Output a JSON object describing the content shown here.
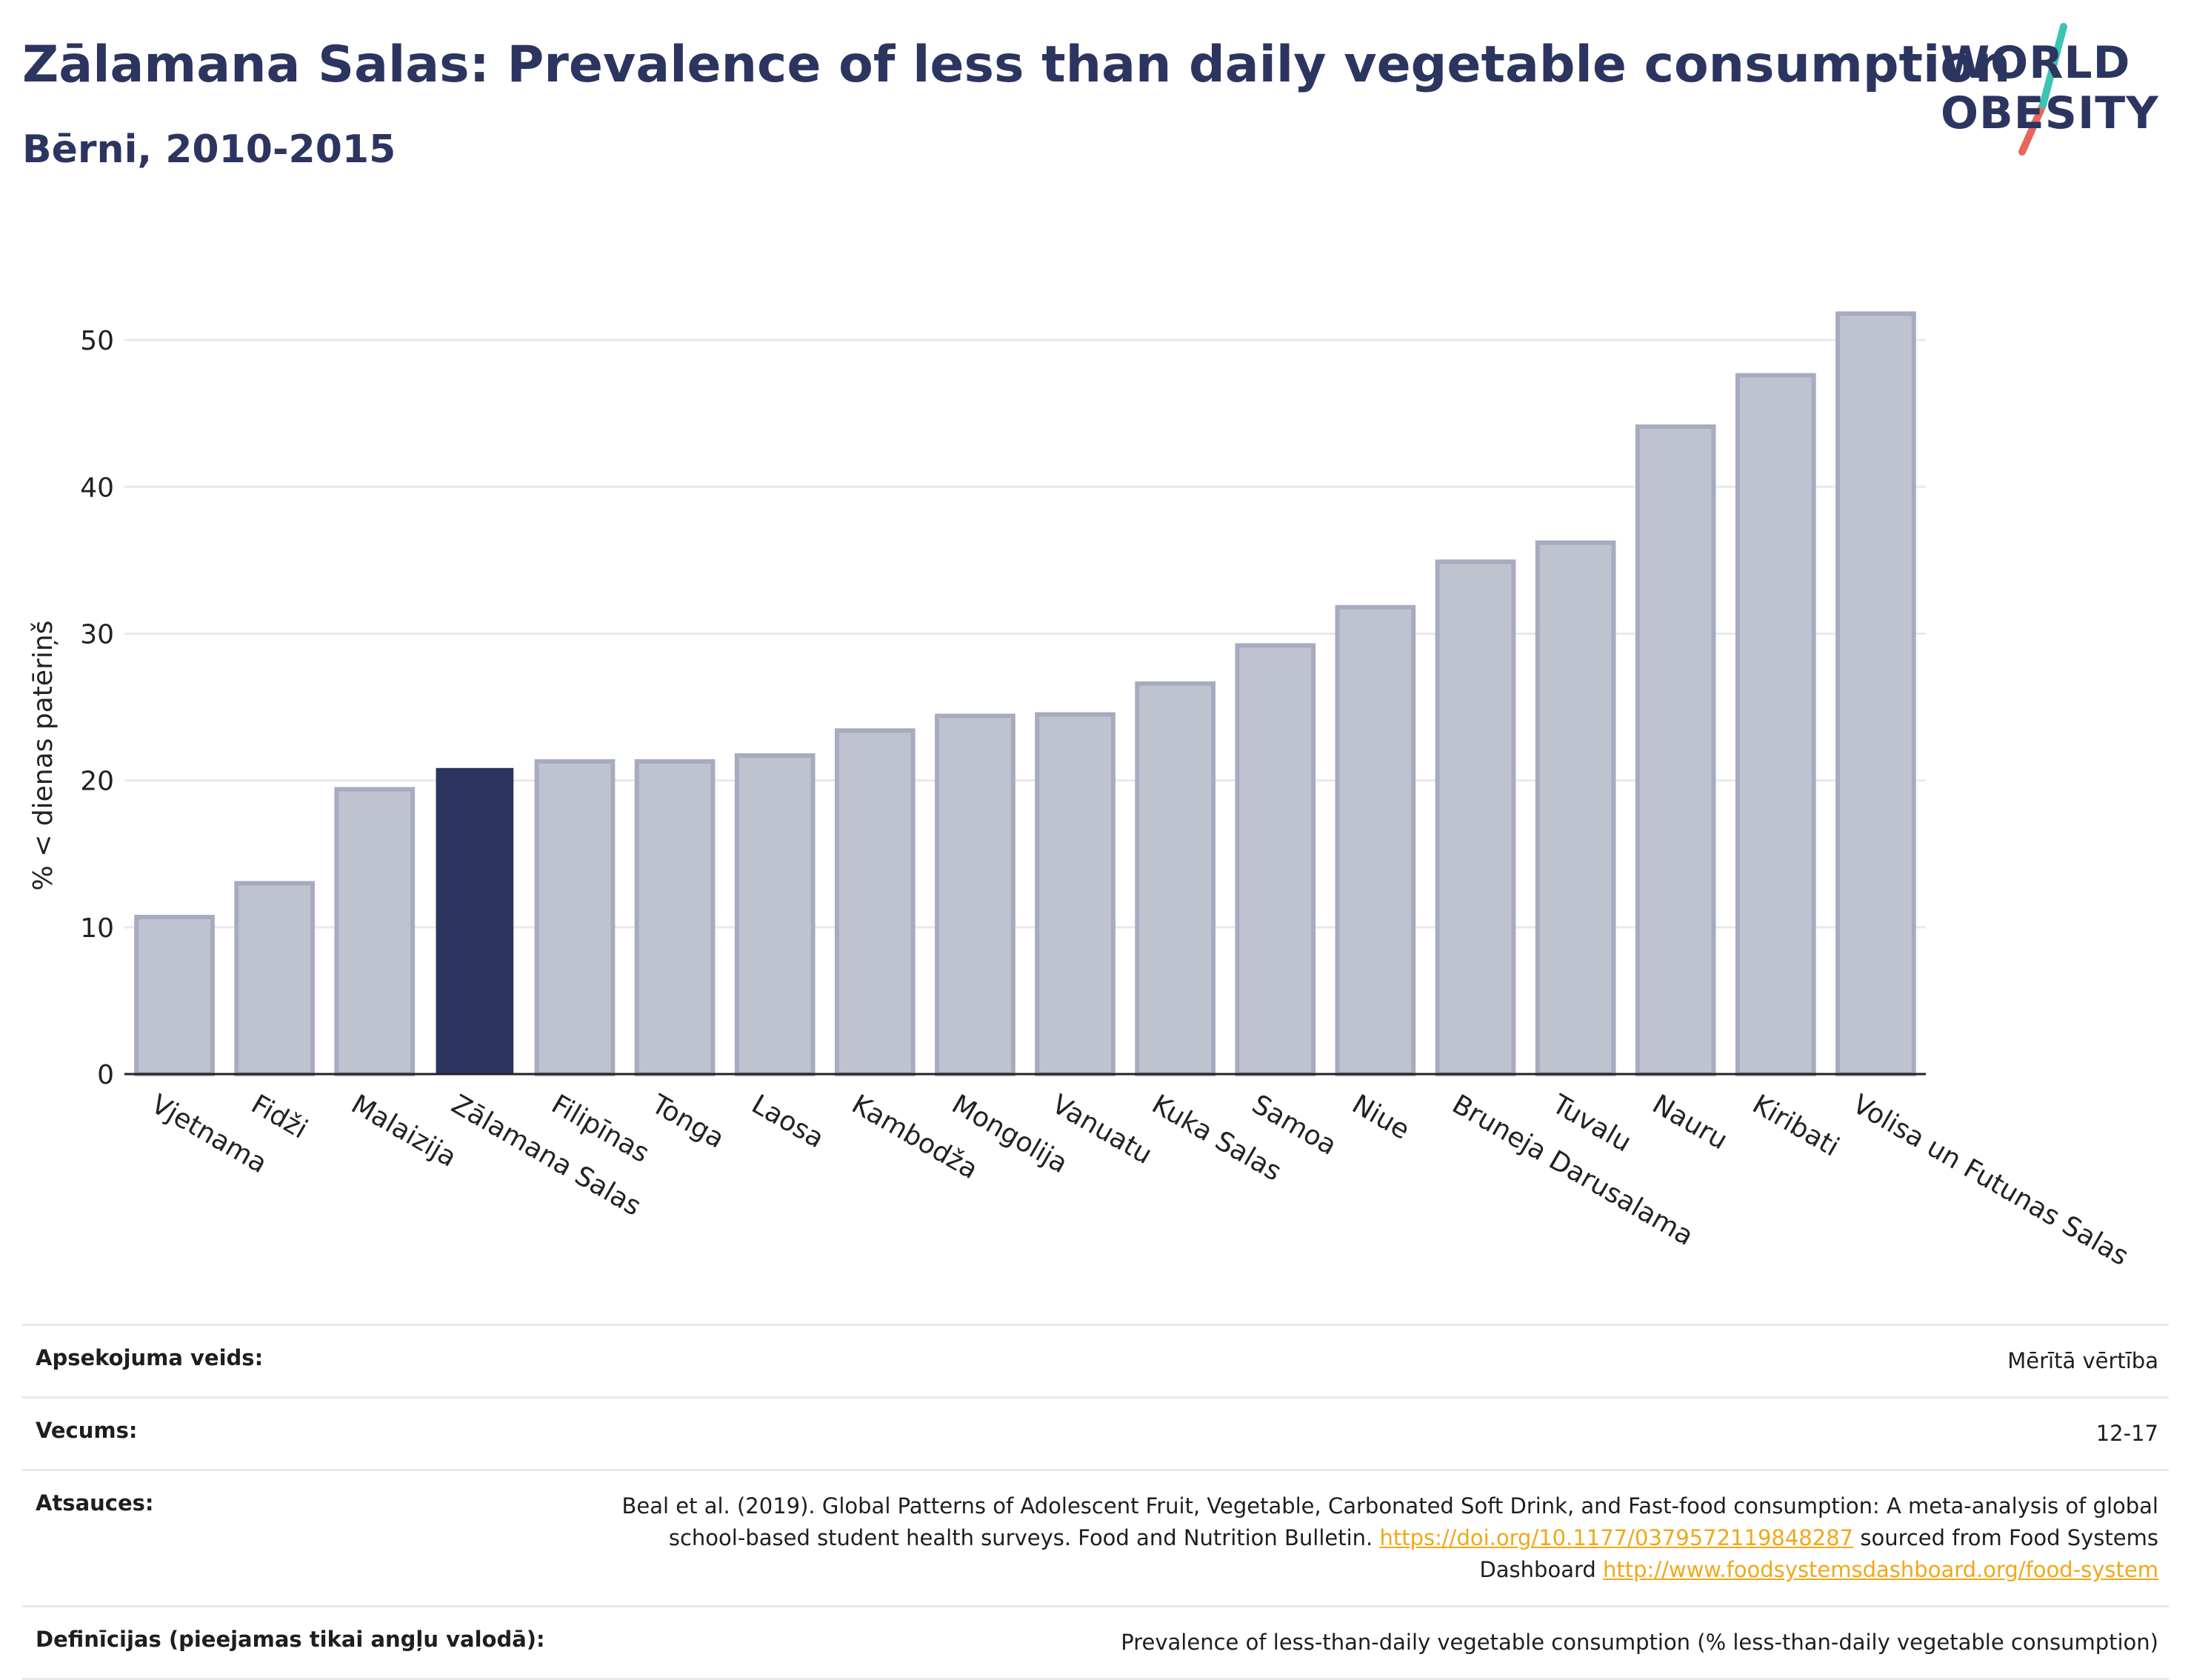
{
  "header": {
    "title": "Zālamana Salas: Prevalence of less than daily vegetable consumption",
    "subtitle": "Bērni, 2010-2015"
  },
  "logo": {
    "line1": "WORLD",
    "line2": "OBESITY",
    "slash_colors": [
      "#3cc3b4",
      "#e8665a"
    ]
  },
  "colors": {
    "highlight_bar": "#2c3560",
    "other_bar_fill": "#bfc3d0",
    "other_bar_stroke": "#a6abc0",
    "grid": "#e8e9ee",
    "axis": "#222222"
  },
  "chart_data": {
    "type": "bar",
    "ylabel": "% < dienas patēriņš",
    "xlabel": "",
    "ylim": [
      0,
      55
    ],
    "yticks": [
      0,
      10,
      20,
      30,
      40,
      50
    ],
    "grid": true,
    "highlight": "Zālamana Salas",
    "categories": [
      "Vjetnama",
      "Fidži",
      "Malaizija",
      "Zālamana Salas",
      "Filipīnas",
      "Tonga",
      "Laosa",
      "Kambodža",
      "Mongolija",
      "Vanuatu",
      "Kuka Salas",
      "Samoa",
      "Niue",
      "Bruneja Darusalama",
      "Tuvalu",
      "Nauru",
      "Kiribati",
      "Volisa un Futunas Salas"
    ],
    "values": [
      10.7,
      13.0,
      19.4,
      20.8,
      21.3,
      21.3,
      21.7,
      23.4,
      24.4,
      24.5,
      26.6,
      29.2,
      31.8,
      34.9,
      36.2,
      44.1,
      47.6,
      51.8
    ]
  },
  "meta": [
    {
      "label": "Apsekojuma veids:",
      "value": "Mērītā vērtība"
    },
    {
      "label": "Vecums:",
      "value": "12-17"
    },
    {
      "label": "Atsauces:",
      "text1": "Beal et al. (2019). Global Patterns of Adolescent Fruit, Vegetable, Carbonated Soft Drink, and Fast-food consumption: A meta-analysis of global school-based student health surveys. Food and Nutrition Bulletin. ",
      "link1": "https://doi.org/10.1177/0379572119848287",
      "text2": " sourced from Food Systems Dashboard ",
      "link2": "http://www.foodsystemsdashboard.org/food-system"
    },
    {
      "label": "Definīcijas (pieejamas tikai angļu valodā):",
      "value": "Prevalence of less-than-daily vegetable consumption (% less-than-daily vegetable consumption)"
    }
  ]
}
